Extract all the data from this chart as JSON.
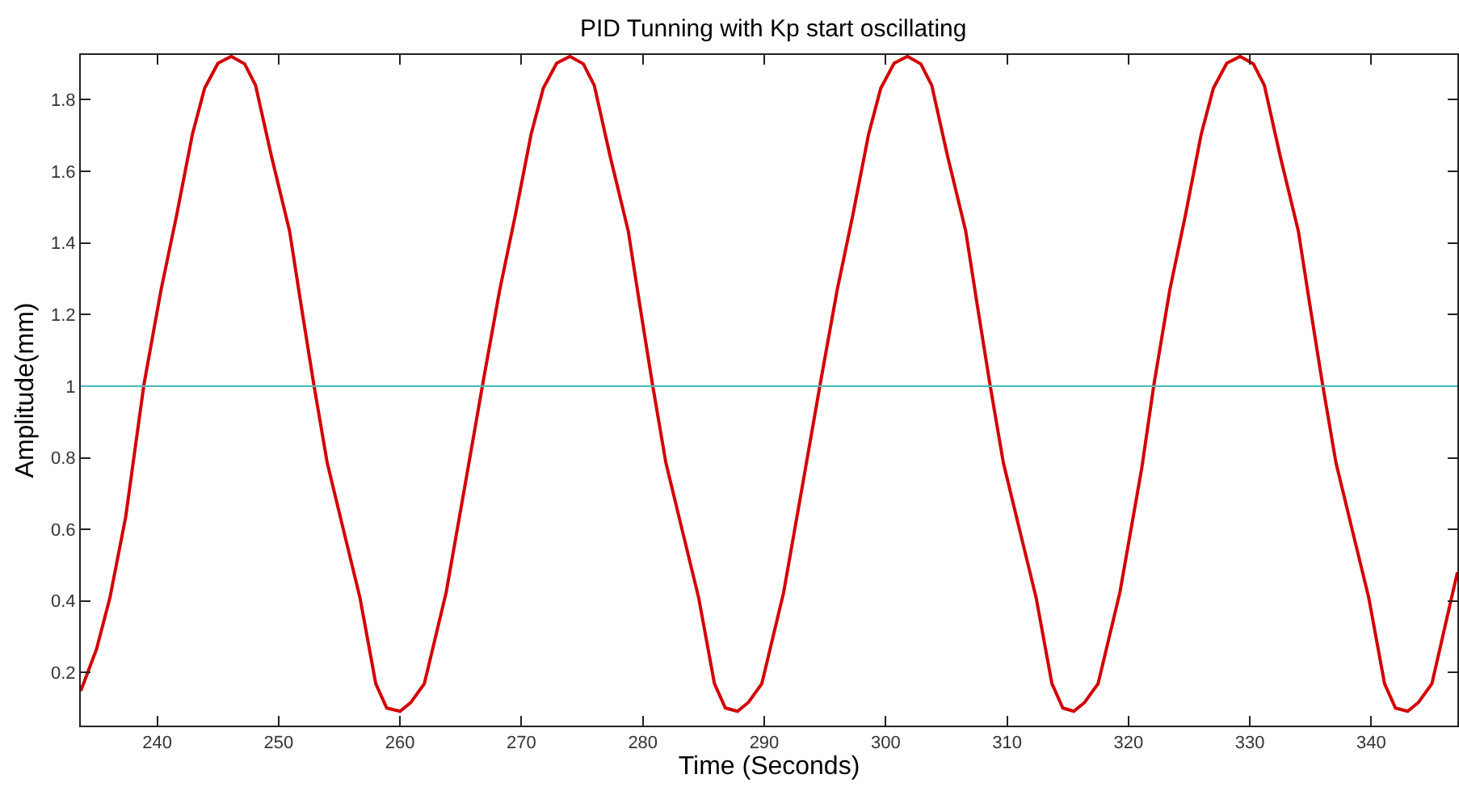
{
  "chart_data": {
    "type": "line",
    "title": "PID Tunning with Kp start oscillating",
    "xlabel": "Time (Seconds)",
    "ylabel": "Amplitude(mm)",
    "xlim": [
      233.7,
      347.1
    ],
    "xticks": [
      240,
      250,
      260,
      270,
      280,
      290,
      300,
      310,
      320,
      330,
      340
    ],
    "ylim": [
      0.052,
      1.925
    ],
    "yticks": [
      0.2,
      0.4,
      0.6,
      0.8,
      1,
      1.2,
      1.4,
      1.6,
      1.8
    ],
    "line_style": "solid",
    "marker": "none",
    "ref_lines": [
      {
        "axis": "y",
        "value": 1,
        "color": "#4fbcbc"
      }
    ],
    "series": [
      {
        "color": "#d40000",
        "x": [
          233.7,
          235.0,
          236.1,
          237.4,
          238.9,
          240.3,
          241.6,
          242.9,
          243.9,
          245.0,
          246.1,
          247.2,
          248.1,
          249.4,
          250.9,
          251.8,
          252.9,
          254.0,
          255.4,
          256.7,
          258.0,
          258.9,
          260.0,
          260.9,
          262.0,
          263.8,
          265.6,
          266.8,
          268.2,
          269.5,
          270.8,
          271.8,
          272.9,
          274.0,
          275.1,
          276.0,
          277.3,
          278.8,
          279.7,
          280.8,
          281.9,
          283.3,
          284.6,
          285.9,
          286.8,
          287.8,
          288.7,
          289.8,
          291.6,
          293.4,
          294.6,
          296.0,
          297.3,
          298.6,
          299.6,
          300.7,
          301.8,
          302.9,
          303.8,
          305.1,
          306.6,
          307.5,
          308.6,
          309.7,
          311.1,
          312.4,
          313.7,
          314.6,
          315.5,
          316.4,
          317.5,
          319.3,
          321.1,
          322.1,
          323.4,
          324.7,
          326.0,
          327.0,
          328.1,
          329.2,
          330.3,
          331.2,
          332.5,
          334.0,
          334.9,
          336.0,
          337.1,
          338.5,
          339.8,
          341.1,
          342.0,
          343.0,
          343.9,
          345.0,
          347.1
        ],
        "values": [
          0.149,
          0.266,
          0.409,
          0.635,
          1.004,
          1.267,
          1.478,
          1.704,
          1.832,
          1.902,
          1.921,
          1.9,
          1.84,
          1.643,
          1.433,
          1.237,
          1.004,
          0.786,
          0.59,
          0.409,
          0.169,
          0.101,
          0.092,
          0.117,
          0.169,
          0.424,
          0.771,
          1.004,
          1.267,
          1.478,
          1.704,
          1.832,
          1.902,
          1.921,
          1.9,
          1.84,
          1.643,
          1.433,
          1.237,
          1.004,
          0.786,
          0.59,
          0.409,
          0.169,
          0.101,
          0.092,
          0.117,
          0.169,
          0.424,
          0.771,
          1.004,
          1.267,
          1.478,
          1.704,
          1.832,
          1.902,
          1.921,
          1.9,
          1.84,
          1.643,
          1.433,
          1.237,
          1.004,
          0.786,
          0.59,
          0.409,
          0.169,
          0.101,
          0.092,
          0.117,
          0.169,
          0.424,
          0.771,
          1.004,
          1.267,
          1.478,
          1.704,
          1.832,
          1.902,
          1.921,
          1.9,
          1.84,
          1.643,
          1.433,
          1.237,
          1.004,
          0.786,
          0.59,
          0.409,
          0.169,
          0.101,
          0.092,
          0.117,
          0.169,
          0.48
        ]
      }
    ]
  }
}
